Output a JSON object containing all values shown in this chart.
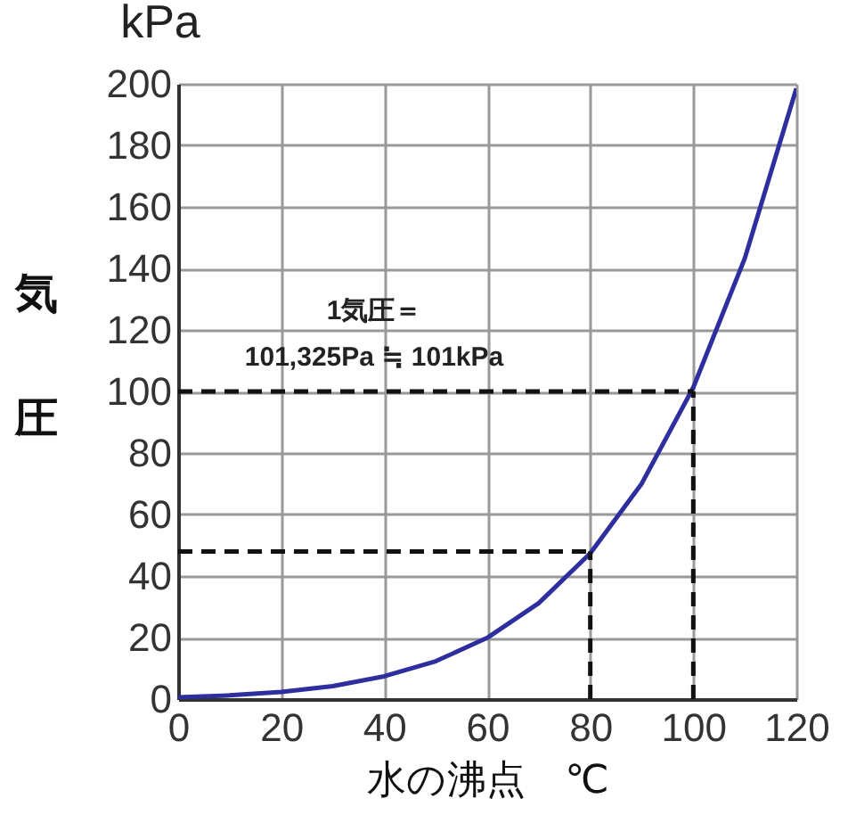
{
  "chart_data": {
    "type": "line",
    "xlabel": "水の沸点　℃",
    "ylabel": "気圧",
    "annotations": [
      "kPa",
      "1気圧＝",
      "101,325Pa ≒ 101kPa"
    ],
    "x": [
      0,
      10,
      20,
      30,
      40,
      50,
      60,
      70,
      80,
      90,
      100,
      110,
      120
    ],
    "series": [
      {
        "color": "#2e2e9e",
        "values": [
          0.6,
          1.2,
          2.3,
          4.2,
          7.4,
          12.3,
          19.9,
          31.2,
          47.4,
          70.1,
          101.3,
          143.3,
          198.5
        ]
      }
    ],
    "xlim": [
      0,
      120
    ],
    "xticks": [
      0,
      20,
      40,
      60,
      80,
      100,
      120
    ],
    "ylim": [
      0,
      200
    ],
    "yticks": [
      0,
      20,
      40,
      60,
      80,
      100,
      120,
      140,
      160,
      180,
      200
    ],
    "grid": true,
    "marker": "none",
    "line_style": "solid",
    "ref_lines": [
      {
        "axis": "y",
        "value": 48,
        "line_style": "dashed"
      },
      {
        "axis": "x",
        "value": 80,
        "line_style": "dashed"
      },
      {
        "axis": "y",
        "value": 100,
        "line_style": "dashed"
      },
      {
        "axis": "x",
        "value": 100,
        "line_style": "dashed"
      }
    ]
  }
}
